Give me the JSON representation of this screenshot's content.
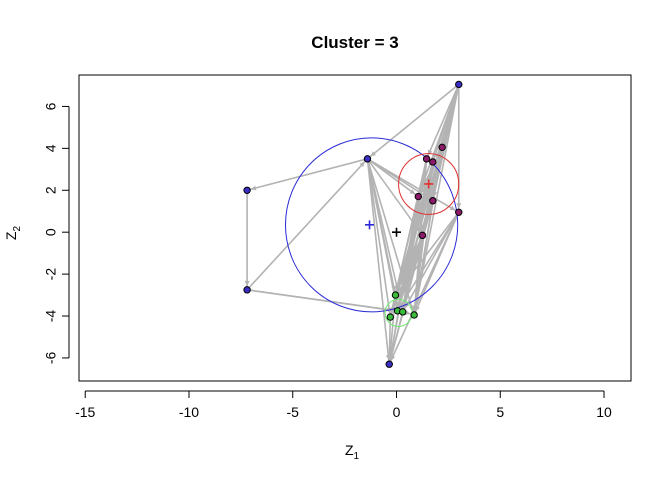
{
  "chart_data": {
    "type": "scatter",
    "title": "Cluster = 3",
    "xlabel": "Z",
    "xlabel_sub": "1",
    "ylabel": "Z",
    "ylabel_sub": "2",
    "xlim": [
      -15.3,
      11.3
    ],
    "ylim": [
      -7.1,
      7.5
    ],
    "xticks": [
      -15,
      -10,
      -5,
      0,
      5,
      10
    ],
    "yticks": [
      -6,
      -4,
      -2,
      0,
      2,
      4,
      6
    ],
    "box": true,
    "grid": false,
    "edge_color": "#b3b3b3",
    "nodes": [
      {
        "x": 3.0,
        "y": 7.05,
        "color": "#3b2ec4"
      },
      {
        "x": -1.4,
        "y": 3.5,
        "color": "#3b2ec4"
      },
      {
        "x": 2.2,
        "y": 4.05,
        "color": "#8b1a6b"
      },
      {
        "x": 1.45,
        "y": 3.5,
        "color": "#8b1a6b"
      },
      {
        "x": 1.75,
        "y": 3.35,
        "color": "#8b1a6b"
      },
      {
        "x": -7.2,
        "y": 2.0,
        "color": "#3b2ec4"
      },
      {
        "x": 1.05,
        "y": 1.7,
        "color": "#8b1a6b"
      },
      {
        "x": 1.75,
        "y": 1.5,
        "color": "#8b1a6b"
      },
      {
        "x": 3.0,
        "y": 0.95,
        "color": "#8b1a6b"
      },
      {
        "x": 1.25,
        "y": -0.15,
        "color": "#8b1a6b"
      },
      {
        "x": -7.2,
        "y": -2.75,
        "color": "#3b2ec4"
      },
      {
        "x": -0.05,
        "y": -3.0,
        "color": "#3bbd3b"
      },
      {
        "x": 0.05,
        "y": -3.75,
        "color": "#3bbd3b"
      },
      {
        "x": 0.3,
        "y": -3.8,
        "color": "#3bbd3b"
      },
      {
        "x": 0.85,
        "y": -3.95,
        "color": "#3bbd3b"
      },
      {
        "x": -0.3,
        "y": -4.05,
        "color": "#3bbd3b"
      },
      {
        "x": -0.35,
        "y": -6.3,
        "color": "#3b2ec4"
      }
    ],
    "edges": [
      [
        0,
        1
      ],
      [
        0,
        2
      ],
      [
        0,
        3
      ],
      [
        0,
        4
      ],
      [
        0,
        6
      ],
      [
        0,
        7
      ],
      [
        0,
        8
      ],
      [
        0,
        9
      ],
      [
        0,
        12
      ],
      [
        0,
        13
      ],
      [
        0,
        14
      ],
      [
        0,
        11
      ],
      [
        1,
        5
      ],
      [
        1,
        6
      ],
      [
        1,
        7
      ],
      [
        1,
        8
      ],
      [
        1,
        9
      ],
      [
        1,
        11
      ],
      [
        1,
        12
      ],
      [
        1,
        13
      ],
      [
        1,
        14
      ],
      [
        1,
        15
      ],
      [
        1,
        16
      ],
      [
        5,
        10
      ],
      [
        10,
        1
      ],
      [
        10,
        12
      ],
      [
        10,
        13
      ],
      [
        2,
        6
      ],
      [
        2,
        7
      ],
      [
        2,
        11
      ],
      [
        2,
        12
      ],
      [
        2,
        13
      ],
      [
        2,
        14
      ],
      [
        2,
        15
      ],
      [
        3,
        11
      ],
      [
        3,
        12
      ],
      [
        3,
        13
      ],
      [
        3,
        14
      ],
      [
        3,
        15
      ],
      [
        3,
        16
      ],
      [
        4,
        11
      ],
      [
        4,
        12
      ],
      [
        4,
        13
      ],
      [
        4,
        14
      ],
      [
        4,
        15
      ],
      [
        6,
        11
      ],
      [
        6,
        12
      ],
      [
        6,
        13
      ],
      [
        6,
        15
      ],
      [
        6,
        16
      ],
      [
        7,
        11
      ],
      [
        7,
        12
      ],
      [
        7,
        13
      ],
      [
        7,
        14
      ],
      [
        7,
        16
      ],
      [
        8,
        11
      ],
      [
        8,
        12
      ],
      [
        8,
        13
      ],
      [
        8,
        14
      ],
      [
        8,
        16
      ],
      [
        9,
        11
      ],
      [
        9,
        12
      ],
      [
        9,
        13
      ],
      [
        9,
        14
      ],
      [
        9,
        15
      ],
      [
        9,
        16
      ],
      [
        11,
        12
      ],
      [
        12,
        13
      ],
      [
        13,
        14
      ],
      [
        15,
        16
      ],
      [
        11,
        16
      ]
    ],
    "circles": [
      {
        "cx": -1.2,
        "cy": 0.35,
        "r": 4.15,
        "color": "#2b2bd6"
      },
      {
        "cx": 1.55,
        "cy": 2.3,
        "r": 1.45,
        "color": "#e03030"
      },
      {
        "cx": 0.1,
        "cy": -3.85,
        "r": 0.65,
        "color": "#6ee86e"
      }
    ],
    "centers": [
      {
        "x": -1.3,
        "y": 0.35,
        "color": "#2b2bd6"
      },
      {
        "x": 1.55,
        "y": 2.3,
        "color": "#e03030"
      },
      {
        "x": 0.0,
        "y": 0.0,
        "color": "#000000"
      }
    ]
  }
}
